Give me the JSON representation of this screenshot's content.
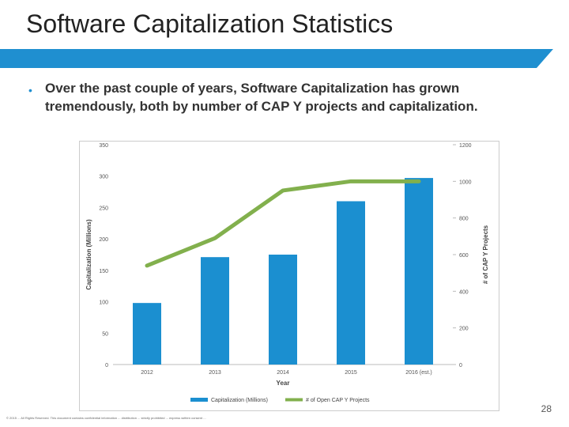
{
  "slide": {
    "title": "Software Capitalization Statistics",
    "bullet": "Over the past couple of years, Software Capitalization has grown tremendously, both by number of CAP Y projects and capitalization.",
    "page_number": "28",
    "footer_text": "© 2015 ... All Rights Reserved. This document contains confidential information ... distribution ... strictly prohibited ... express written consent ..."
  },
  "colors": {
    "accent": "#1f8fd0",
    "bar": "#1b8fd0",
    "line": "#82b04d"
  },
  "chart_data": {
    "type": "bar",
    "categories": [
      "2012",
      "2013",
      "2014",
      "2015",
      "2016 (est.)"
    ],
    "series": [
      {
        "name": "Capitalization (Millions)",
        "type": "bar",
        "axis": "left",
        "values": [
          98,
          171,
          175,
          260,
          297
        ]
      },
      {
        "name": "# of Open CAP Y Projects",
        "type": "line",
        "axis": "right",
        "values": [
          540,
          690,
          950,
          1000,
          1000
        ]
      }
    ],
    "xlabel": "Year",
    "ylabel": "Capitalization (Millions)",
    "y2label": "# of CAP Y Projects",
    "ylim": [
      0,
      350
    ],
    "y2lim": [
      0,
      1200
    ],
    "yticks": [
      0,
      50,
      100,
      150,
      200,
      250,
      300,
      350
    ],
    "y2ticks": [
      0,
      200,
      400,
      600,
      800,
      1000,
      1200
    ],
    "legend": [
      "Capitalization (Millions)",
      "# of Open CAP Y Projects"
    ]
  }
}
